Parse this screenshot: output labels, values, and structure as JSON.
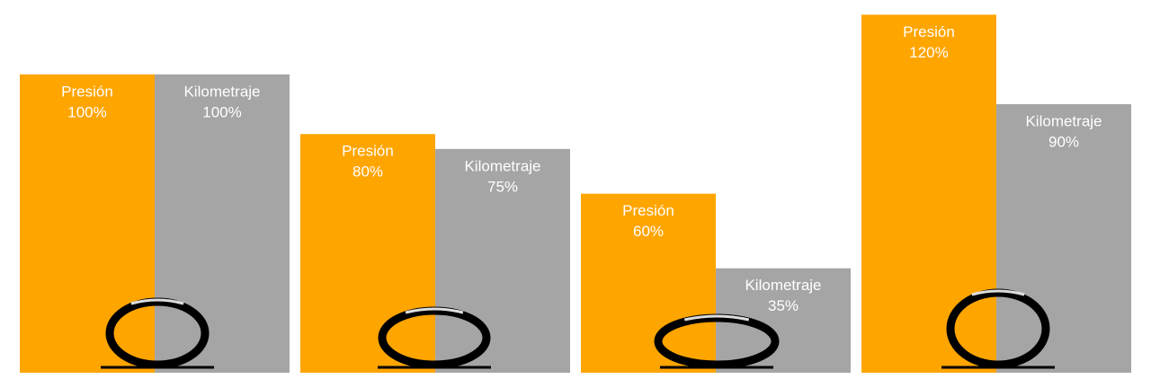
{
  "chart_data": {
    "type": "bar",
    "series": [
      {
        "name": "Presión",
        "color": "#ffa500",
        "values": [
          100,
          80,
          60,
          120
        ],
        "value_labels": [
          "100%",
          "80%",
          "60%",
          "120%"
        ]
      },
      {
        "name": "Kilometraje",
        "color": "#a5a5a5",
        "values": [
          100,
          75,
          35,
          90
        ],
        "value_labels": [
          "100%",
          "75%",
          "35%",
          "90%"
        ]
      }
    ]
  }
}
